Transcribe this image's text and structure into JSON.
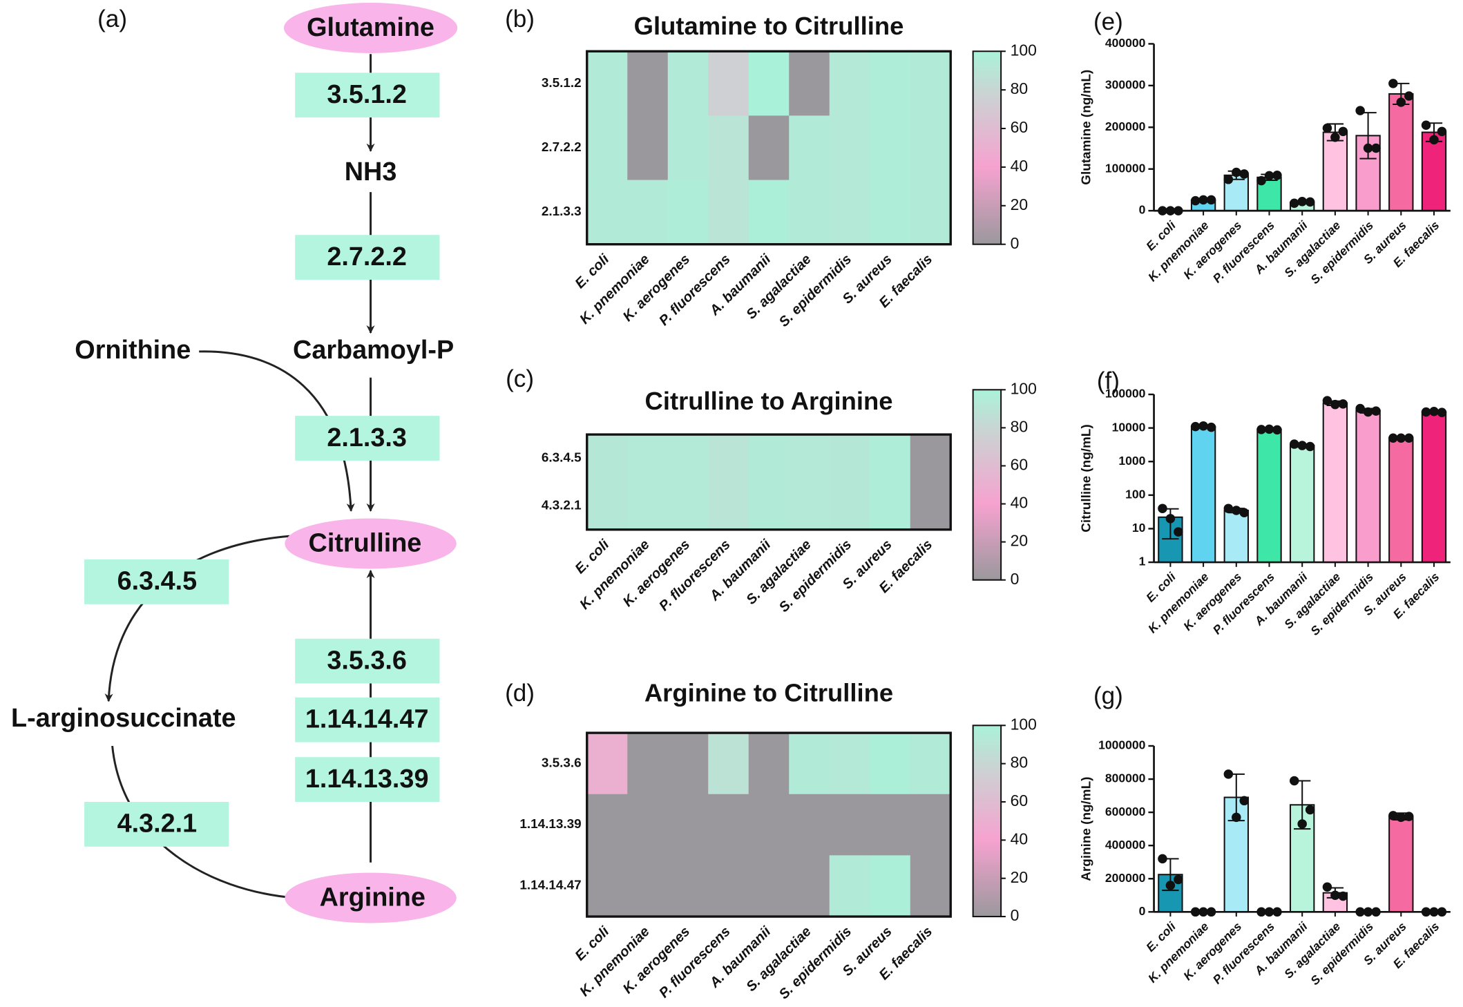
{
  "diagram": {
    "panel": "(a)",
    "nodes": [
      "Glutamine",
      "3.5.1.2",
      "NH3",
      "2.7.2.2",
      "Carbamoyl-P",
      "Ornithine",
      "2.1.3.3",
      "Citrulline",
      "6.3.4.5",
      "L-arginosuccinate",
      "4.3.2.1",
      "3.5.3.6",
      "1.14.14.47",
      "1.14.13.39",
      "Arginine"
    ]
  },
  "chart_data": [
    {
      "type": "heatmap",
      "panel": "(b)",
      "title": "Glutamine to Citrulline",
      "rows": [
        "3.5.1.2",
        "2.7.2.2",
        "2.1.3.3"
      ],
      "columns": [
        "E. coli",
        "K. pnemoniae",
        "K. aerogenes",
        "P. fluorescens",
        "A. baumanii",
        "S. agalactiae",
        "S. epidermidis",
        "S. aureus",
        "E. faecalis"
      ],
      "values": [
        [
          95,
          0,
          95,
          75,
          100,
          0,
          93,
          97,
          95
        ],
        [
          95,
          0,
          95,
          90,
          0,
          95,
          93,
          97,
          95
        ],
        [
          95,
          95,
          97,
          90,
          98,
          95,
          93,
          97,
          95
        ]
      ],
      "zlim": [
        0,
        100
      ],
      "zticks": [
        0,
        20,
        40,
        60,
        80,
        100
      ],
      "colors": [
        "#9a989d",
        "#f6a2cf",
        "#c8d6d3",
        "#a9f2d9"
      ],
      "color_stops": [
        0,
        40,
        80,
        100
      ]
    },
    {
      "type": "heatmap",
      "panel": "(c)",
      "title": "Citrulline to Arginine",
      "rows": [
        "6.3.4.5",
        "4.3.2.1"
      ],
      "columns": [
        "E. coli",
        "K. pnemoniae",
        "K. aerogenes",
        "P. fluorescens",
        "A. baumanii",
        "S. agalactiae",
        "S. epidermidis",
        "S. aureus",
        "E. faecalis"
      ],
      "values": [
        [
          92,
          94,
          94,
          90,
          95,
          93,
          92,
          97,
          0
        ],
        [
          92,
          94,
          94,
          90,
          95,
          93,
          92,
          97,
          0
        ]
      ],
      "zlim": [
        0,
        100
      ],
      "zticks": [
        0,
        20,
        40,
        60,
        80,
        100
      ],
      "colors": [
        "#9a989d",
        "#f6a2cf",
        "#c8d6d3",
        "#a9f2d9"
      ],
      "color_stops": [
        0,
        40,
        80,
        100
      ]
    },
    {
      "type": "heatmap",
      "panel": "(d)",
      "title": "Arginine to Citrulline",
      "rows": [
        "3.5.3.6",
        "1.14.13.39",
        "1.14.14.47"
      ],
      "columns": [
        "E. coli",
        "K. pnemoniae",
        "K. aerogenes",
        "P. fluorescens",
        "A. baumanii",
        "S. agalactiae",
        "S. epidermidis",
        "S. aureus",
        "E. faecalis"
      ],
      "values": [
        [
          50,
          0,
          0,
          88,
          0,
          95,
          93,
          98,
          95
        ],
        [
          0,
          0,
          0,
          0,
          0,
          0,
          0,
          0,
          0
        ],
        [
          0,
          0,
          0,
          0,
          0,
          0,
          95,
          98,
          0
        ]
      ],
      "zlim": [
        0,
        100
      ],
      "zticks": [
        0,
        20,
        40,
        60,
        80,
        100
      ],
      "colors": [
        "#9a989d",
        "#f6a2cf",
        "#c8d6d3",
        "#a9f2d9"
      ],
      "color_stops": [
        0,
        40,
        80,
        100
      ]
    },
    {
      "type": "bar",
      "panel": "(e)",
      "ylabel": "Glutamine (ng/mL)",
      "categories": [
        "E. coli",
        "K. pnemoniae",
        "K. aerogenes",
        "P. fluorescens",
        "A. baumanii",
        "S. agalactiae",
        "S. epidermidis",
        "S. aureus",
        "E. faecalis"
      ],
      "values": [
        1000,
        25000,
        85000,
        80000,
        20000,
        188000,
        180000,
        280000,
        188000
      ],
      "errors": [
        1000,
        4000,
        10000,
        7000,
        3000,
        20000,
        55000,
        25000,
        22000
      ],
      "points": [
        [
          0,
          0,
          0
        ],
        [
          24000,
          26000,
          26000
        ],
        [
          75000,
          92000,
          88000
        ],
        [
          72000,
          84000,
          85000
        ],
        [
          18000,
          22000,
          21000
        ],
        [
          198000,
          176000,
          190000
        ],
        [
          240000,
          150000,
          150000
        ],
        [
          305000,
          260000,
          275000
        ],
        [
          205000,
          170000,
          190000
        ]
      ],
      "colors": [
        "#1897b3",
        "#5fd3ef",
        "#a8ebf7",
        "#3ee6a8",
        "#b8f4dc",
        "#ffc3e1",
        "#f89dcc",
        "#f56aa0",
        "#ef2379"
      ],
      "ylim": [
        0,
        400000
      ],
      "yticks": [
        0,
        100000,
        200000,
        300000,
        400000
      ],
      "log": false
    },
    {
      "type": "bar",
      "panel": "(f)",
      "ylabel": "Citrulline (ng/mL)",
      "categories": [
        "E. coli",
        "K. pnemoniae",
        "K. aerogenes",
        "P. fluorescens",
        "A. baumanii",
        "S. agalactiae",
        "S. epidermidis",
        "S. aureus",
        "E. faecalis"
      ],
      "values": [
        22,
        11000,
        35,
        9000,
        3000,
        55000,
        33000,
        5000,
        30000
      ],
      "errors": [
        17,
        500,
        5,
        200,
        300,
        8000,
        5000,
        100,
        1000
      ],
      "points": [
        [
          40,
          20,
          8
        ],
        [
          11000,
          11500,
          10500
        ],
        [
          40,
          35,
          30
        ],
        [
          9000,
          9200,
          8800
        ],
        [
          3300,
          3000,
          2800
        ],
        [
          65000,
          50000,
          52000
        ],
        [
          38000,
          30000,
          32000
        ],
        [
          5000,
          5000,
          5000
        ],
        [
          30000,
          31000,
          29000
        ]
      ],
      "colors": [
        "#1897b3",
        "#5fd3ef",
        "#a8ebf7",
        "#3ee6a8",
        "#b8f4dc",
        "#ffc3e1",
        "#f89dcc",
        "#f56aa0",
        "#ef2379"
      ],
      "ylim": [
        1,
        100000
      ],
      "yticks": [
        1,
        10,
        100,
        1000,
        10000,
        100000
      ],
      "log": true
    },
    {
      "type": "bar",
      "panel": "(g)",
      "ylabel": "Arginine (ng/mL)",
      "categories": [
        "E. coli",
        "K. pnemoniae",
        "K. aerogenes",
        "P. fluorescens",
        "A. baumanii",
        "S. agalactiae",
        "S. epidermidis",
        "S. aureus",
        "E. faecalis"
      ],
      "values": [
        225000,
        0,
        690000,
        0,
        645000,
        115000,
        0,
        575000,
        0
      ],
      "errors": [
        95000,
        0,
        140000,
        0,
        145000,
        30000,
        0,
        20000,
        0
      ],
      "points": [
        [
          320000,
          160000,
          195000
        ],
        [
          0,
          0,
          0
        ],
        [
          830000,
          570000,
          670000
        ],
        [
          0,
          0,
          0
        ],
        [
          790000,
          530000,
          615000
        ],
        [
          150000,
          100000,
          95000
        ],
        [
          0,
          0,
          0
        ],
        [
          580000,
          570000,
          575000
        ],
        [
          0,
          0,
          0
        ]
      ],
      "colors": [
        "#1897b3",
        "#5fd3ef",
        "#a8ebf7",
        "#3ee6a8",
        "#b8f4dc",
        "#ffc3e1",
        "#f89dcc",
        "#f56aa0",
        "#ef2379"
      ],
      "ylim": [
        0,
        1000000
      ],
      "yticks": [
        0,
        200000,
        400000,
        600000,
        800000,
        1000000
      ],
      "log": false
    }
  ]
}
